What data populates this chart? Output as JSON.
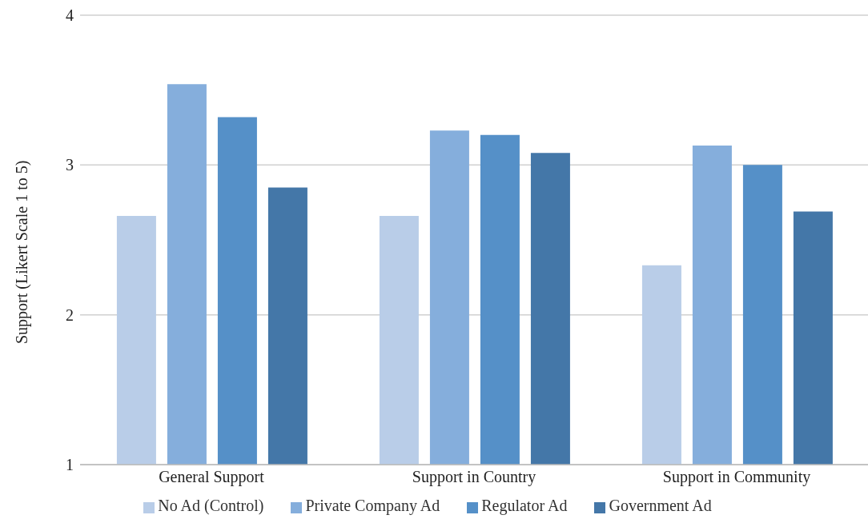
{
  "chart_data": {
    "type": "bar",
    "ylabel": "Support (Likert Scale 1 to 5)",
    "categories": [
      "General Support",
      "Support in Country",
      "Support in Community"
    ],
    "series": [
      {
        "name": "No Ad (Control)",
        "color": "#b9cde8",
        "values": [
          2.66,
          2.66,
          2.33
        ]
      },
      {
        "name": "Private Company Ad",
        "color": "#85aedc",
        "values": [
          3.54,
          3.23,
          3.13
        ]
      },
      {
        "name": "Regulator Ad",
        "color": "#5590c8",
        "values": [
          3.32,
          3.2,
          3.0
        ]
      },
      {
        "name": "Government Ad",
        "color": "#4477a8",
        "values": [
          2.85,
          3.08,
          2.69
        ]
      }
    ],
    "ylim": [
      1,
      4
    ],
    "yticks": [
      1,
      2,
      3,
      4
    ],
    "grid": "y",
    "legend": "bottom"
  }
}
